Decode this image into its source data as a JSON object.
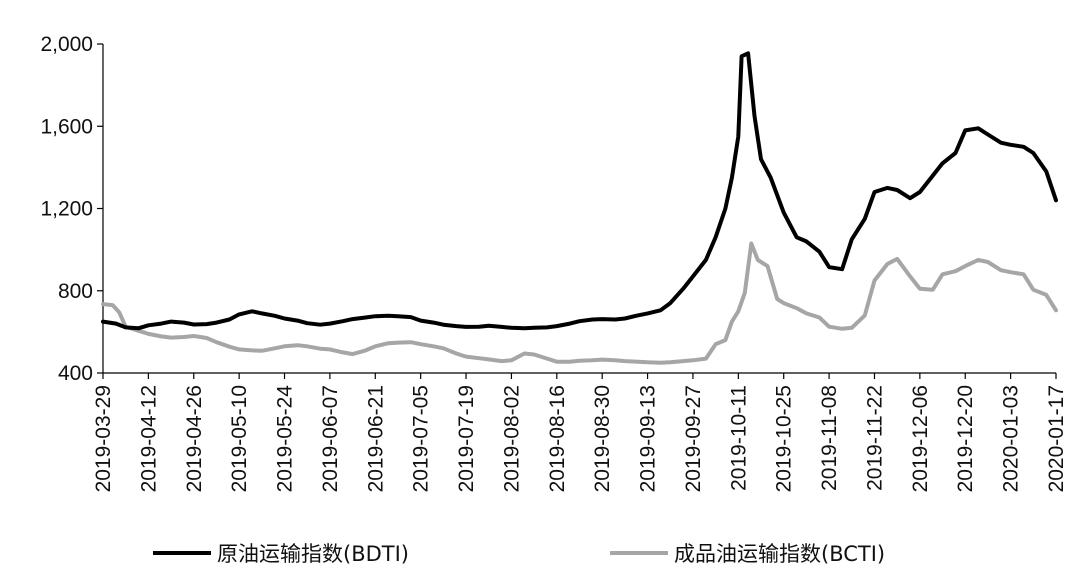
{
  "chart_data": {
    "type": "line",
    "title": "",
    "xlabel": "",
    "ylabel": "",
    "ylim": [
      400,
      2000
    ],
    "y_ticks": [
      400,
      800,
      1200,
      1600,
      2000
    ],
    "y_tick_labels": [
      "400",
      "800",
      "1,200",
      "1,600",
      "2,000"
    ],
    "x_range": [
      "2019-03-29",
      "2020-01-17"
    ],
    "x_ticks": [
      "2019-03-29",
      "2019-04-12",
      "2019-04-26",
      "2019-05-10",
      "2019-05-24",
      "2019-06-07",
      "2019-06-21",
      "2019-07-05",
      "2019-07-19",
      "2019-08-02",
      "2019-08-16",
      "2019-08-30",
      "2019-09-13",
      "2019-09-27",
      "2019-10-11",
      "2019-10-25",
      "2019-11-08",
      "2019-11-22",
      "2019-12-06",
      "2019-12-20",
      "2020-01-03",
      "2020-01-17"
    ],
    "grid": false,
    "legend": "bottom",
    "series": [
      {
        "name": "原油运输指数(BDTI)",
        "color": "#000000",
        "points": [
          [
            "2019-03-29",
            650
          ],
          [
            "2019-04-02",
            640
          ],
          [
            "2019-04-05",
            622
          ],
          [
            "2019-04-09",
            618
          ],
          [
            "2019-04-12",
            632
          ],
          [
            "2019-04-16",
            640
          ],
          [
            "2019-04-19",
            650
          ],
          [
            "2019-04-23",
            645
          ],
          [
            "2019-04-26",
            636
          ],
          [
            "2019-04-30",
            638
          ],
          [
            "2019-05-03",
            645
          ],
          [
            "2019-05-07",
            660
          ],
          [
            "2019-05-10",
            685
          ],
          [
            "2019-05-14",
            700
          ],
          [
            "2019-05-17",
            690
          ],
          [
            "2019-05-21",
            678
          ],
          [
            "2019-05-24",
            665
          ],
          [
            "2019-05-28",
            655
          ],
          [
            "2019-05-31",
            642
          ],
          [
            "2019-06-04",
            635
          ],
          [
            "2019-06-07",
            640
          ],
          [
            "2019-06-11",
            652
          ],
          [
            "2019-06-14",
            662
          ],
          [
            "2019-06-18",
            670
          ],
          [
            "2019-06-21",
            676
          ],
          [
            "2019-06-25",
            678
          ],
          [
            "2019-06-28",
            676
          ],
          [
            "2019-07-02",
            672
          ],
          [
            "2019-07-05",
            655
          ],
          [
            "2019-07-09",
            645
          ],
          [
            "2019-07-12",
            635
          ],
          [
            "2019-07-16",
            628
          ],
          [
            "2019-07-19",
            624
          ],
          [
            "2019-07-23",
            625
          ],
          [
            "2019-07-26",
            630
          ],
          [
            "2019-07-30",
            624
          ],
          [
            "2019-08-02",
            620
          ],
          [
            "2019-08-06",
            618
          ],
          [
            "2019-08-09",
            620
          ],
          [
            "2019-08-13",
            622
          ],
          [
            "2019-08-16",
            628
          ],
          [
            "2019-08-20",
            640
          ],
          [
            "2019-08-23",
            652
          ],
          [
            "2019-08-27",
            660
          ],
          [
            "2019-08-30",
            662
          ],
          [
            "2019-09-03",
            660
          ],
          [
            "2019-09-06",
            665
          ],
          [
            "2019-09-10",
            680
          ],
          [
            "2019-09-13",
            690
          ],
          [
            "2019-09-17",
            705
          ],
          [
            "2019-09-20",
            740
          ],
          [
            "2019-09-24",
            810
          ],
          [
            "2019-09-27",
            870
          ],
          [
            "2019-10-01",
            950
          ],
          [
            "2019-10-04",
            1060
          ],
          [
            "2019-10-07",
            1200
          ],
          [
            "2019-10-09",
            1350
          ],
          [
            "2019-10-11",
            1550
          ],
          [
            "2019-10-12",
            1940
          ],
          [
            "2019-10-14",
            1955
          ],
          [
            "2019-10-16",
            1650
          ],
          [
            "2019-10-18",
            1440
          ],
          [
            "2019-10-21",
            1350
          ],
          [
            "2019-10-25",
            1180
          ],
          [
            "2019-10-29",
            1060
          ],
          [
            "2019-11-01",
            1040
          ],
          [
            "2019-11-05",
            990
          ],
          [
            "2019-11-08",
            915
          ],
          [
            "2019-11-12",
            905
          ],
          [
            "2019-11-15",
            1050
          ],
          [
            "2019-11-19",
            1150
          ],
          [
            "2019-11-22",
            1280
          ],
          [
            "2019-11-26",
            1300
          ],
          [
            "2019-11-29",
            1290
          ],
          [
            "2019-12-03",
            1250
          ],
          [
            "2019-12-06",
            1280
          ],
          [
            "2019-12-10",
            1360
          ],
          [
            "2019-12-13",
            1420
          ],
          [
            "2019-12-17",
            1470
          ],
          [
            "2019-12-20",
            1580
          ],
          [
            "2019-12-24",
            1590
          ],
          [
            "2019-12-27",
            1560
          ],
          [
            "2019-12-31",
            1520
          ],
          [
            "2020-01-03",
            1510
          ],
          [
            "2020-01-07",
            1500
          ],
          [
            "2020-01-10",
            1470
          ],
          [
            "2020-01-14",
            1380
          ],
          [
            "2020-01-17",
            1240
          ]
        ]
      },
      {
        "name": "成品油运输指数(BCTI)",
        "color": "#a6a6a6",
        "points": [
          [
            "2019-03-29",
            735
          ],
          [
            "2019-04-01",
            730
          ],
          [
            "2019-04-03",
            695
          ],
          [
            "2019-04-05",
            625
          ],
          [
            "2019-04-09",
            605
          ],
          [
            "2019-04-12",
            590
          ],
          [
            "2019-04-16",
            578
          ],
          [
            "2019-04-19",
            572
          ],
          [
            "2019-04-23",
            575
          ],
          [
            "2019-04-26",
            580
          ],
          [
            "2019-04-30",
            570
          ],
          [
            "2019-05-03",
            550
          ],
          [
            "2019-05-07",
            528
          ],
          [
            "2019-05-10",
            515
          ],
          [
            "2019-05-14",
            510
          ],
          [
            "2019-05-17",
            508
          ],
          [
            "2019-05-21",
            520
          ],
          [
            "2019-05-24",
            530
          ],
          [
            "2019-05-28",
            535
          ],
          [
            "2019-05-31",
            530
          ],
          [
            "2019-06-04",
            518
          ],
          [
            "2019-06-07",
            515
          ],
          [
            "2019-06-11",
            500
          ],
          [
            "2019-06-14",
            492
          ],
          [
            "2019-06-18",
            510
          ],
          [
            "2019-06-21",
            530
          ],
          [
            "2019-06-25",
            545
          ],
          [
            "2019-06-28",
            548
          ],
          [
            "2019-07-02",
            550
          ],
          [
            "2019-07-05",
            540
          ],
          [
            "2019-07-09",
            530
          ],
          [
            "2019-07-12",
            520
          ],
          [
            "2019-07-16",
            495
          ],
          [
            "2019-07-19",
            480
          ],
          [
            "2019-07-23",
            472
          ],
          [
            "2019-07-26",
            466
          ],
          [
            "2019-07-30",
            458
          ],
          [
            "2019-08-02",
            462
          ],
          [
            "2019-08-06",
            495
          ],
          [
            "2019-08-09",
            490
          ],
          [
            "2019-08-13",
            470
          ],
          [
            "2019-08-16",
            455
          ],
          [
            "2019-08-20",
            455
          ],
          [
            "2019-08-23",
            460
          ],
          [
            "2019-08-27",
            462
          ],
          [
            "2019-08-30",
            465
          ],
          [
            "2019-09-03",
            462
          ],
          [
            "2019-09-06",
            458
          ],
          [
            "2019-09-10",
            455
          ],
          [
            "2019-09-13",
            452
          ],
          [
            "2019-09-17",
            450
          ],
          [
            "2019-09-20",
            452
          ],
          [
            "2019-09-24",
            458
          ],
          [
            "2019-09-27",
            462
          ],
          [
            "2019-10-01",
            470
          ],
          [
            "2019-10-04",
            540
          ],
          [
            "2019-10-07",
            560
          ],
          [
            "2019-10-09",
            650
          ],
          [
            "2019-10-11",
            700
          ],
          [
            "2019-10-13",
            790
          ],
          [
            "2019-10-15",
            1030
          ],
          [
            "2019-10-17",
            950
          ],
          [
            "2019-10-20",
            920
          ],
          [
            "2019-10-23",
            760
          ],
          [
            "2019-10-25",
            740
          ],
          [
            "2019-10-29",
            715
          ],
          [
            "2019-11-01",
            690
          ],
          [
            "2019-11-05",
            670
          ],
          [
            "2019-11-08",
            625
          ],
          [
            "2019-11-12",
            615
          ],
          [
            "2019-11-15",
            620
          ],
          [
            "2019-11-19",
            680
          ],
          [
            "2019-11-22",
            850
          ],
          [
            "2019-11-26",
            930
          ],
          [
            "2019-11-29",
            955
          ],
          [
            "2019-12-03",
            870
          ],
          [
            "2019-12-06",
            810
          ],
          [
            "2019-12-10",
            805
          ],
          [
            "2019-12-13",
            880
          ],
          [
            "2019-12-17",
            895
          ],
          [
            "2019-12-20",
            920
          ],
          [
            "2019-12-24",
            950
          ],
          [
            "2019-12-27",
            940
          ],
          [
            "2019-12-31",
            900
          ],
          [
            "2020-01-03",
            890
          ],
          [
            "2020-01-07",
            880
          ],
          [
            "2020-01-10",
            805
          ],
          [
            "2020-01-14",
            780
          ],
          [
            "2020-01-17",
            705
          ]
        ]
      }
    ]
  }
}
